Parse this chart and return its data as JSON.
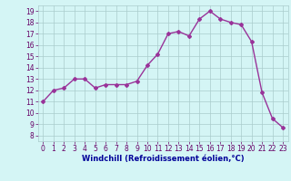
{
  "x": [
    0,
    1,
    2,
    3,
    4,
    5,
    6,
    7,
    8,
    9,
    10,
    11,
    12,
    13,
    14,
    15,
    16,
    17,
    18,
    19,
    20,
    21,
    22,
    23
  ],
  "y": [
    11,
    12,
    12.2,
    13,
    13,
    12.2,
    12.5,
    12.5,
    12.5,
    12.8,
    14.2,
    15.2,
    17,
    17.2,
    16.8,
    18.3,
    19.0,
    18.3,
    18.0,
    17.8,
    16.3,
    11.8,
    9.5,
    8.7
  ],
  "line_color": "#993399",
  "marker": "D",
  "marker_size": 2,
  "linewidth": 1.0,
  "bg_color": "#d4f5f5",
  "grid_color": "#aacccc",
  "xlabel": "Windchill (Refroidissement éolien,°C)",
  "xlabel_fontsize": 6,
  "xlim": [
    -0.5,
    23.5
  ],
  "ylim": [
    7.5,
    19.5
  ],
  "yticks": [
    8,
    9,
    10,
    11,
    12,
    13,
    14,
    15,
    16,
    17,
    18,
    19
  ],
  "xticks": [
    0,
    1,
    2,
    3,
    4,
    5,
    6,
    7,
    8,
    9,
    10,
    11,
    12,
    13,
    14,
    15,
    16,
    17,
    18,
    19,
    20,
    21,
    22,
    23
  ],
  "tick_fontsize": 5.5,
  "tick_color": "#660066",
  "xlabel_color": "#000099",
  "spine_color": "#aacccc"
}
